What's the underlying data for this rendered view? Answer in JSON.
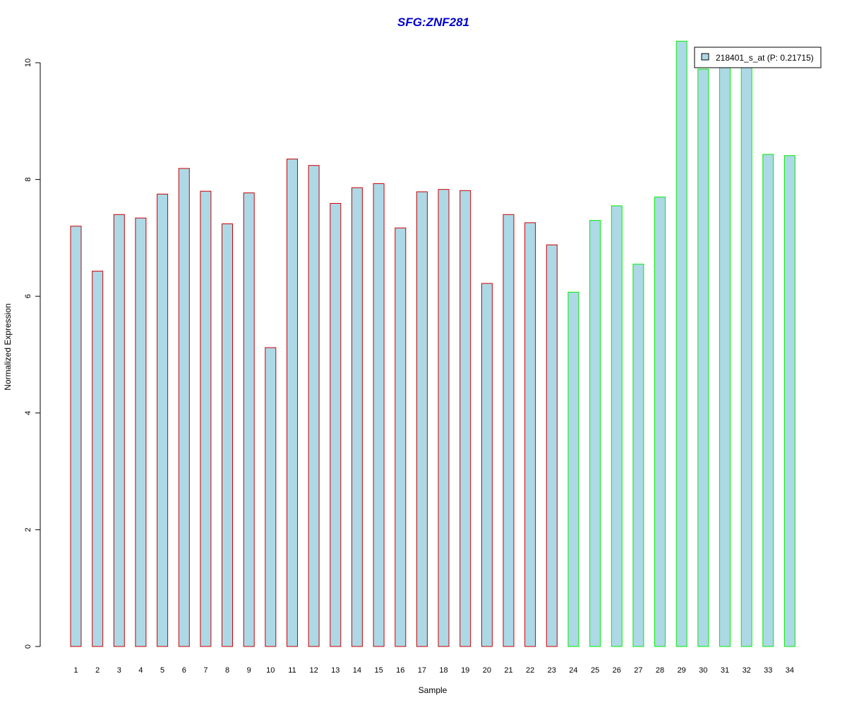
{
  "chart_data": {
    "type": "bar",
    "title": "SFG:ZNF281",
    "xlabel": "Sample",
    "ylabel": "Normalized Expression",
    "ylim": [
      0,
      10.4
    ],
    "yticks": [
      0,
      2,
      4,
      6,
      8,
      10
    ],
    "grid": false,
    "legend": {
      "placement": "top-right",
      "entries": [
        "218401_s_at (P: 0.21715)"
      ]
    },
    "colors": {
      "fill": "#ADD8E6",
      "group1_border": "#CC0000",
      "group2_border": "#00EE00",
      "title": "#0000CD"
    },
    "categories": [
      "1",
      "2",
      "3",
      "4",
      "5",
      "6",
      "7",
      "8",
      "9",
      "10",
      "11",
      "12",
      "13",
      "14",
      "15",
      "16",
      "17",
      "18",
      "19",
      "20",
      "21",
      "22",
      "23",
      "24",
      "25",
      "26",
      "27",
      "28",
      "29",
      "30",
      "31",
      "32",
      "33",
      "34"
    ],
    "series": [
      {
        "name": "218401_s_at (P: 0.21715)",
        "values": [
          7.2,
          6.43,
          7.4,
          7.34,
          7.75,
          8.19,
          7.8,
          7.24,
          7.77,
          5.12,
          8.35,
          8.24,
          7.59,
          7.86,
          7.93,
          7.17,
          7.79,
          7.83,
          7.81,
          6.22,
          7.4,
          7.26,
          6.88,
          6.07,
          7.3,
          7.55,
          6.55,
          7.7,
          10.37,
          9.89,
          9.95,
          9.95,
          8.43,
          8.41
        ],
        "groups": [
          1,
          1,
          1,
          1,
          1,
          1,
          1,
          1,
          1,
          1,
          1,
          1,
          1,
          1,
          1,
          1,
          1,
          1,
          1,
          1,
          1,
          1,
          1,
          2,
          2,
          2,
          2,
          2,
          2,
          2,
          2,
          2,
          2,
          2
        ]
      }
    ]
  }
}
